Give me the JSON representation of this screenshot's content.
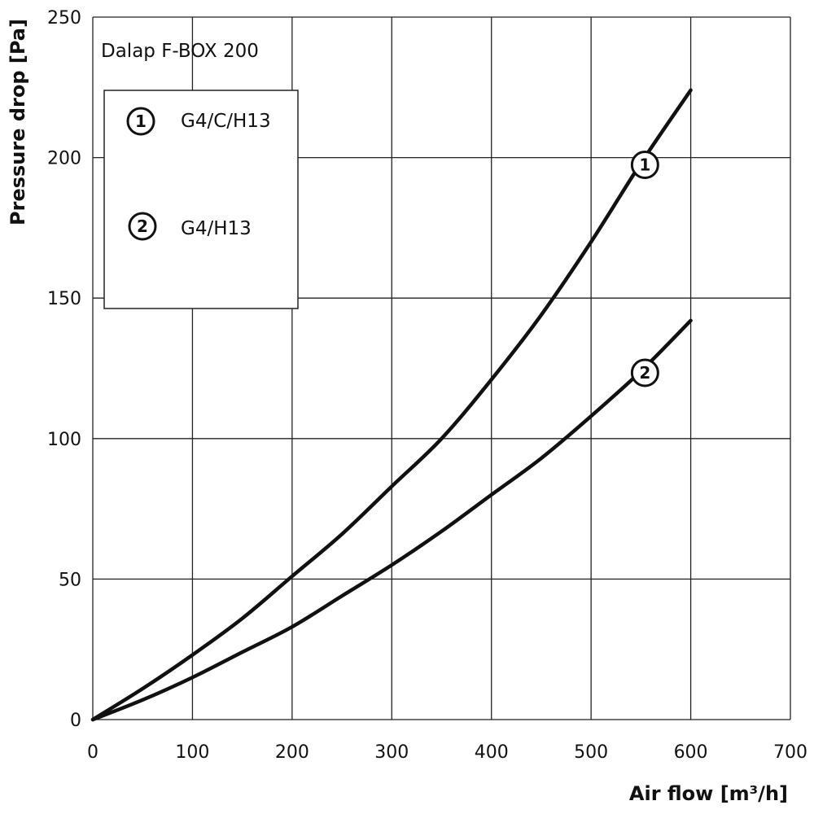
{
  "chart_data": {
    "type": "line",
    "title": "Dalap F-BOX 200",
    "xlabel": "Air flow [m³/h]",
    "ylabel": "Pressure drop [Pa]",
    "xlim": [
      0,
      700
    ],
    "ylim": [
      0,
      250
    ],
    "xticks": [
      "0",
      "100",
      "200",
      "300",
      "400",
      "500",
      "600",
      "700"
    ],
    "yticks": [
      "0",
      "50",
      "100",
      "150",
      "200",
      "250"
    ],
    "grid": true,
    "legend": {
      "placement": "top-left",
      "entries": [
        {
          "marker": "1",
          "label": "G4/C/H13"
        },
        {
          "marker": "2",
          "label": "G4/H13"
        }
      ]
    },
    "series": [
      {
        "marker": "1",
        "x": [
          0,
          50,
          100,
          150,
          200,
          250,
          300,
          350,
          400,
          450,
          500,
          550,
          600
        ],
        "y": [
          0,
          11,
          23,
          36,
          51,
          66,
          83,
          100,
          121,
          144,
          170,
          198,
          224
        ]
      },
      {
        "marker": "2",
        "x": [
          0,
          50,
          100,
          150,
          200,
          250,
          300,
          350,
          400,
          450,
          500,
          550,
          600
        ],
        "y": [
          0,
          7,
          15,
          24,
          33,
          44,
          55,
          67,
          80,
          93,
          108,
          124,
          142
        ]
      }
    ],
    "curve_labels": [
      {
        "marker": "1",
        "x": 550,
        "y": 198
      },
      {
        "marker": "2",
        "x": 550,
        "y": 124
      }
    ],
    "line_color": "#111111",
    "grid_color": "#222222"
  }
}
